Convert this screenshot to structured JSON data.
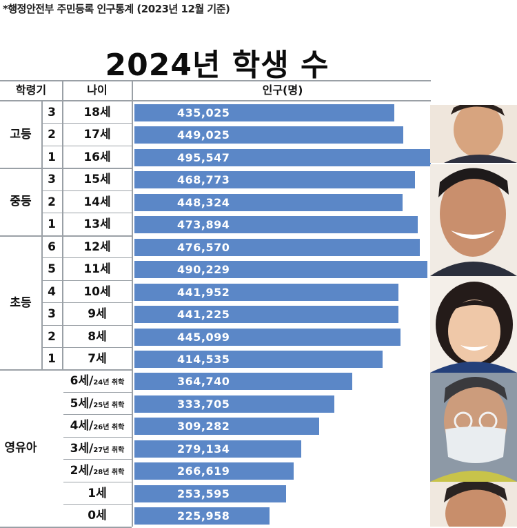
{
  "source_note": "*행정안전부 주민등록 인구통계 (2023년 12월 기준)",
  "chart_data": {
    "type": "bar",
    "title": "2024년  학생 수",
    "columns": {
      "stage": "학령기",
      "age": "나이",
      "population": "인구(명)"
    },
    "groups": [
      {
        "label": "고등",
        "rows": [
          0,
          1,
          2
        ]
      },
      {
        "label": "중등",
        "rows": [
          3,
          4,
          5
        ]
      },
      {
        "label": "초등",
        "rows": [
          6,
          7,
          8,
          9,
          10,
          11
        ]
      },
      {
        "label": "영유아",
        "rows": [
          12,
          13,
          14,
          15,
          16,
          17,
          18
        ]
      }
    ],
    "rows": [
      {
        "grade": "3",
        "age": "18세",
        "note": "",
        "value": 435025,
        "label": "435,025"
      },
      {
        "grade": "2",
        "age": "17세",
        "note": "",
        "value": 449025,
        "label": "449,025"
      },
      {
        "grade": "1",
        "age": "16세",
        "note": "",
        "value": 495547,
        "label": "495,547"
      },
      {
        "grade": "3",
        "age": "15세",
        "note": "",
        "value": 468773,
        "label": "468,773"
      },
      {
        "grade": "2",
        "age": "14세",
        "note": "",
        "value": 448324,
        "label": "448,324"
      },
      {
        "grade": "1",
        "age": "13세",
        "note": "",
        "value": 473894,
        "label": "473,894"
      },
      {
        "grade": "6",
        "age": "12세",
        "note": "",
        "value": 476570,
        "label": "476,570"
      },
      {
        "grade": "5",
        "age": "11세",
        "note": "",
        "value": 490229,
        "label": "490,229"
      },
      {
        "grade": "4",
        "age": "10세",
        "note": "",
        "value": 441952,
        "label": "441,952"
      },
      {
        "grade": "3",
        "age": "9세",
        "note": "",
        "value": 441225,
        "label": "441,225"
      },
      {
        "grade": "2",
        "age": "8세",
        "note": "",
        "value": 445099,
        "label": "445,099"
      },
      {
        "grade": "1",
        "age": "7세",
        "note": "",
        "value": 414535,
        "label": "414,535"
      },
      {
        "grade": "",
        "age": "6세/",
        "note": "24년 취학",
        "value": 364740,
        "label": "364,740"
      },
      {
        "grade": "",
        "age": "5세/",
        "note": "25년 취학",
        "value": 333705,
        "label": "333,705"
      },
      {
        "grade": "",
        "age": "4세/",
        "note": "26년 취학",
        "value": 309282,
        "label": "309,282"
      },
      {
        "grade": "",
        "age": "3세/",
        "note": "27년 취학",
        "value": 279134,
        "label": "279,134"
      },
      {
        "grade": "",
        "age": "2세/",
        "note": "28년 취학",
        "value": 266619,
        "label": "266,619"
      },
      {
        "grade": "",
        "age": "1세",
        "note": "",
        "value": 253595,
        "label": "253,595"
      },
      {
        "grade": "",
        "age": "0세",
        "note": "",
        "value": 225958,
        "label": "225,958"
      }
    ],
    "bar_color": "#5b87c7",
    "xlim": [
      0,
      495547
    ]
  },
  "portraits": [
    "portrait-1",
    "portrait-2",
    "portrait-3",
    "portrait-4",
    "portrait-5"
  ]
}
